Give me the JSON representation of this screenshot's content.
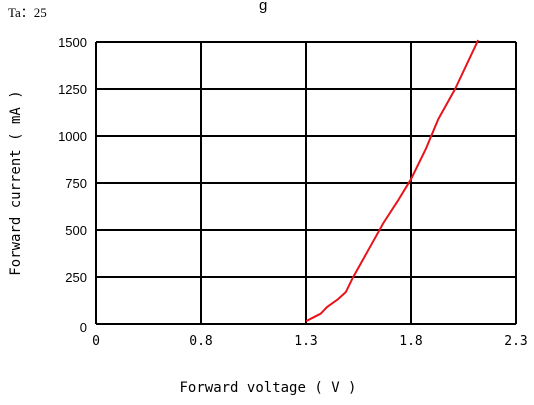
{
  "chart_data": {
    "type": "line",
    "title_fragment": "g",
    "annotation": "Ta：25",
    "xlabel": "Forward voltage ( V )",
    "ylabel": "Forward current ( mA )",
    "x_ticks": [
      "0",
      "0.8",
      "1.3",
      "1.8",
      "2.3"
    ],
    "y_ticks": [
      "0",
      "250",
      "500",
      "750",
      "1000",
      "1250",
      "1500"
    ],
    "y_tick_values": [
      0,
      250,
      500,
      750,
      1000,
      1250,
      1500
    ],
    "ylim": [
      0,
      1500
    ],
    "grid": true,
    "line_color": "#e8141b",
    "series": [
      {
        "x": [
          1.3,
          1.37,
          1.4,
          1.45,
          1.49,
          1.52,
          1.6,
          1.67,
          1.74,
          1.8,
          1.87,
          1.93,
          2.01,
          2.12
        ],
        "y": [
          15,
          55,
          90,
          130,
          170,
          240,
          400,
          540,
          660,
          770,
          930,
          1090,
          1250,
          1510
        ]
      }
    ]
  }
}
